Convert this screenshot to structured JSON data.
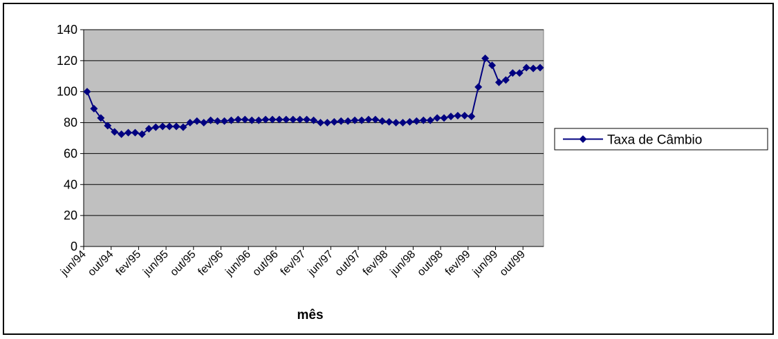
{
  "chart_data": {
    "type": "line",
    "title": "",
    "xlabel": "mês",
    "ylabel": "",
    "ylim": [
      0,
      140
    ],
    "yticks": [
      0,
      20,
      40,
      60,
      80,
      100,
      120,
      140
    ],
    "grid": true,
    "legend_position": "right",
    "plot_background": "#c0c0c0",
    "x_tick_labels": [
      "jun/94",
      "out/94",
      "fev/95",
      "jun/95",
      "out/95",
      "fev/96",
      "jun/96",
      "out/96",
      "fev/97",
      "jun/97",
      "out/97",
      "fev/98",
      "jun/98",
      "out/98",
      "fev/99",
      "jun/99",
      "out/99"
    ],
    "categories": [
      "jun/94",
      "jul/94",
      "ago/94",
      "set/94",
      "out/94",
      "nov/94",
      "dez/94",
      "jan/95",
      "fev/95",
      "mar/95",
      "abr/95",
      "mai/95",
      "jun/95",
      "jul/95",
      "ago/95",
      "set/95",
      "out/95",
      "nov/95",
      "dez/95",
      "jan/96",
      "fev/96",
      "mar/96",
      "abr/96",
      "mai/96",
      "jun/96",
      "jul/96",
      "ago/96",
      "set/96",
      "out/96",
      "nov/96",
      "dez/96",
      "jan/97",
      "fev/97",
      "mar/97",
      "abr/97",
      "mai/97",
      "jun/97",
      "jul/97",
      "ago/97",
      "set/97",
      "out/97",
      "nov/97",
      "dez/97",
      "jan/98",
      "fev/98",
      "mar/98",
      "abr/98",
      "mai/98",
      "jun/98",
      "jul/98",
      "ago/98",
      "set/98",
      "out/98",
      "nov/98",
      "dez/98",
      "jan/99",
      "fev/99",
      "mar/99",
      "abr/99",
      "mai/99",
      "jun/99",
      "jul/99",
      "ago/99",
      "set/99",
      "out/99",
      "nov/99",
      "dez/99"
    ],
    "series": [
      {
        "name": "Taxa de Câmbio",
        "color": "#000080",
        "marker": "diamond",
        "values": [
          100,
          89,
          83,
          78,
          74,
          72.5,
          73.5,
          73.5,
          72.5,
          76,
          77,
          77.5,
          77.5,
          77.5,
          77,
          80,
          81,
          80,
          81.5,
          81,
          81,
          81.5,
          82,
          82,
          81.5,
          81.5,
          82,
          82,
          82,
          82,
          82,
          82,
          82,
          81.5,
          80,
          80,
          80.5,
          81,
          81,
          81.5,
          81.5,
          82,
          82,
          81,
          80.5,
          80,
          80,
          80.5,
          81,
          81.5,
          81.5,
          83,
          83,
          84,
          84.5,
          84.5,
          84,
          103,
          121.5,
          117,
          106,
          107.5,
          112,
          112,
          115.5,
          115,
          115.5
        ]
      }
    ]
  }
}
